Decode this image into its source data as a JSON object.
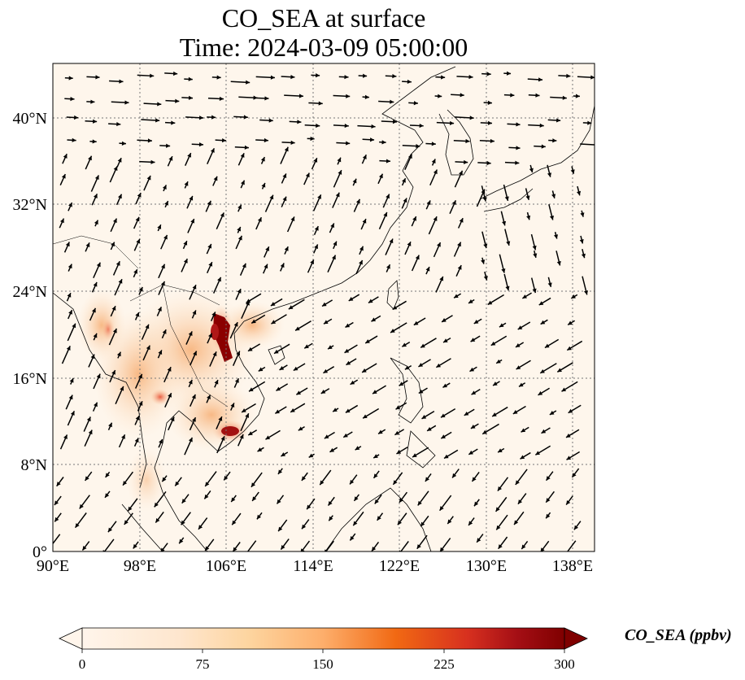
{
  "title": {
    "line1": "CO_SEA at surface",
    "line2": "Time: 2024-03-09 05:00:00"
  },
  "map": {
    "lon_range": [
      90,
      140
    ],
    "lat_range": [
      0,
      45
    ],
    "lon_ticks": [
      "90°E",
      "98°E",
      "106°E",
      "114°E",
      "122°E",
      "130°E",
      "138°E"
    ],
    "lat_ticks": [
      "0°",
      "8°N",
      "16°N",
      "24°N",
      "32°N",
      "40°N"
    ],
    "gridlines": true,
    "wind_vectors": true,
    "max_concentration_region": "Red River Delta / northern Vietnam"
  },
  "colorbar": {
    "label": "CO_SEA (ppbv)",
    "ticks": [
      "0",
      "75",
      "150",
      "225",
      "300"
    ],
    "min": 0,
    "max": 300,
    "extend": "both",
    "colormap": [
      "#fff5eb",
      "#fdd49e",
      "#fdae6b",
      "#f16913",
      "#d94801",
      "#a50f15",
      "#7f0000"
    ]
  }
}
